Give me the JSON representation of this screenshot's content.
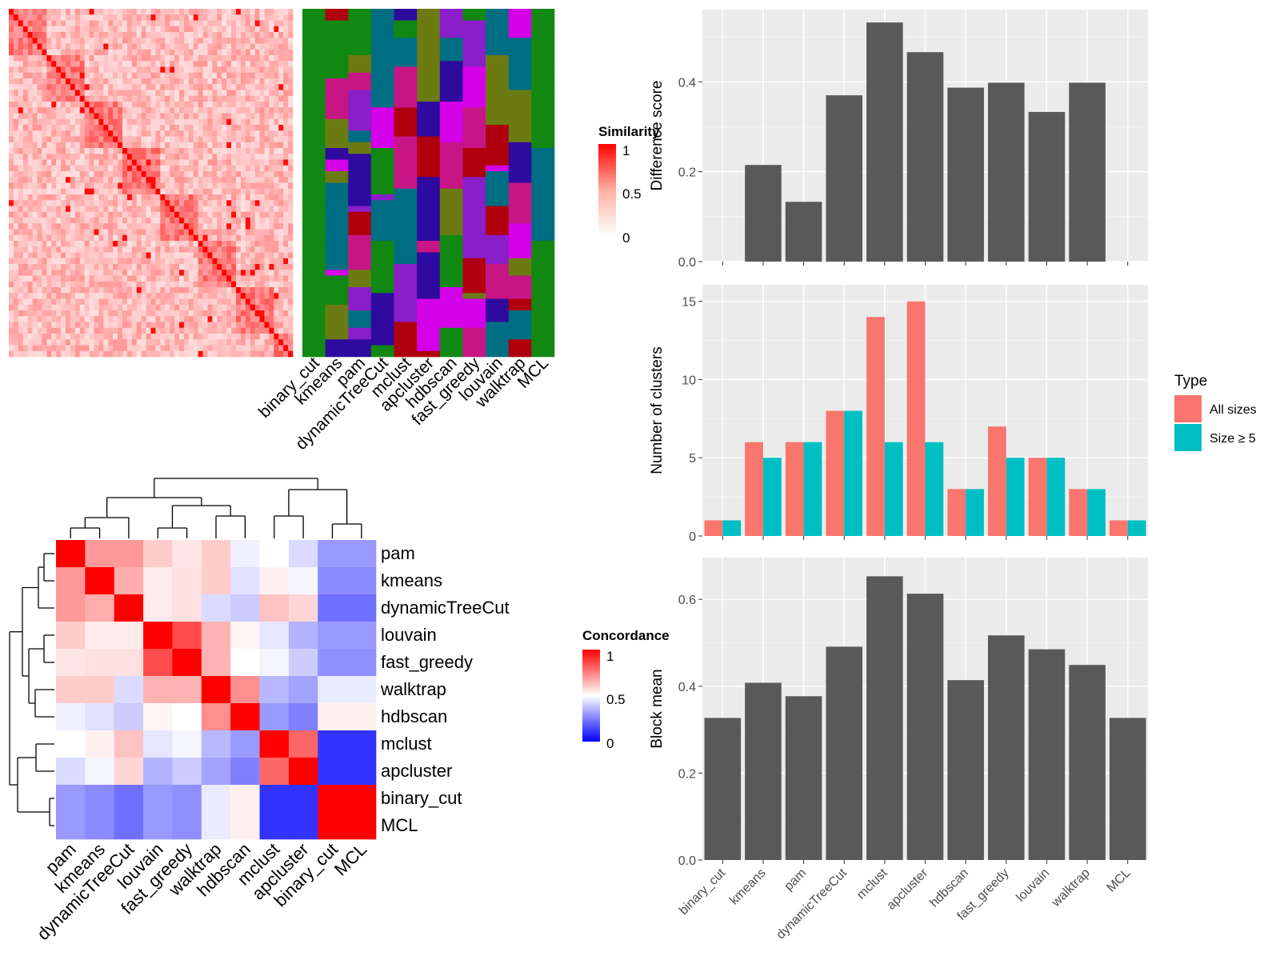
{
  "methods_order": [
    "binary_cut",
    "kmeans",
    "pam",
    "dynamicTreeCut",
    "mclust",
    "apcluster",
    "hdbscan",
    "fast_greedy",
    "louvain",
    "walktrap",
    "MCL"
  ],
  "similarity_heatmap": {
    "legend_title": "Similarity",
    "legend_ticks": [
      "1",
      "0.5",
      "0"
    ],
    "column_labels": [
      "binary_cut",
      "kmeans",
      "pam",
      "dynamicTreeCut",
      "mclust",
      "apcluster",
      "hdbscan",
      "fast_greedy",
      "louvain",
      "walktrap",
      "MCL"
    ]
  },
  "concordance_heatmap": {
    "legend_title": "Concordance",
    "legend_ticks": [
      "1",
      "0.5",
      "0"
    ],
    "labels": [
      "pam",
      "kmeans",
      "dynamicTreeCut",
      "louvain",
      "fast_greedy",
      "walktrap",
      "hdbscan",
      "mclust",
      "apcluster",
      "binary_cut",
      "MCL"
    ],
    "values": [
      [
        1.0,
        0.7,
        0.7,
        0.6,
        0.55,
        0.6,
        0.47,
        0.5,
        0.43,
        0.3,
        0.3
      ],
      [
        0.7,
        1.0,
        0.66,
        0.54,
        0.56,
        0.6,
        0.44,
        0.53,
        0.48,
        0.27,
        0.27
      ],
      [
        0.7,
        0.66,
        1.0,
        0.54,
        0.56,
        0.43,
        0.4,
        0.62,
        0.58,
        0.22,
        0.22
      ],
      [
        0.6,
        0.54,
        0.54,
        1.0,
        0.85,
        0.65,
        0.52,
        0.45,
        0.35,
        0.3,
        0.3
      ],
      [
        0.55,
        0.56,
        0.56,
        0.85,
        1.0,
        0.65,
        0.5,
        0.48,
        0.4,
        0.28,
        0.28
      ],
      [
        0.6,
        0.6,
        0.43,
        0.65,
        0.65,
        1.0,
        0.72,
        0.36,
        0.32,
        0.46,
        0.46
      ],
      [
        0.47,
        0.44,
        0.4,
        0.52,
        0.5,
        0.72,
        1.0,
        0.3,
        0.25,
        0.53,
        0.53
      ],
      [
        0.5,
        0.53,
        0.62,
        0.45,
        0.48,
        0.36,
        0.3,
        1.0,
        0.8,
        0.1,
        0.1
      ],
      [
        0.43,
        0.48,
        0.58,
        0.35,
        0.4,
        0.32,
        0.25,
        0.8,
        1.0,
        0.1,
        0.1
      ],
      [
        0.3,
        0.27,
        0.22,
        0.3,
        0.28,
        0.46,
        0.53,
        0.1,
        0.1,
        1.0,
        1.0
      ],
      [
        0.3,
        0.27,
        0.22,
        0.3,
        0.28,
        0.46,
        0.53,
        0.1,
        0.1,
        1.0,
        1.0
      ]
    ]
  },
  "chart_data": [
    {
      "type": "bar",
      "ylabel": "Difference score",
      "categories": [
        "binary_cut",
        "kmeans",
        "pam",
        "dynamicTreeCut",
        "mclust",
        "apcluster",
        "hdbscan",
        "fast_greedy",
        "louvain",
        "walktrap",
        "MCL"
      ],
      "values": [
        0,
        0.215,
        0.133,
        0.37,
        0.532,
        0.466,
        0.387,
        0.398,
        0.333,
        0.398,
        0
      ],
      "ylim": [
        0,
        0.55
      ],
      "yticks": [
        "0.0",
        "0.2",
        "0.4"
      ],
      "bar_color": "#595959"
    },
    {
      "type": "bar",
      "ylabel": "Number of clusters",
      "categories": [
        "binary_cut",
        "kmeans",
        "pam",
        "dynamicTreeCut",
        "mclust",
        "apcluster",
        "hdbscan",
        "fast_greedy",
        "louvain",
        "walktrap",
        "MCL"
      ],
      "series": [
        {
          "name": "All sizes",
          "values": [
            1,
            6,
            6,
            8,
            14,
            15,
            3,
            7,
            5,
            3,
            1
          ],
          "color": "#F8766D"
        },
        {
          "name": "Size ≥ 5",
          "values": [
            1,
            5,
            6,
            8,
            6,
            6,
            3,
            5,
            5,
            3,
            1
          ],
          "color": "#00BFC4"
        }
      ],
      "legend_title": "Type",
      "ylim": [
        0,
        15.75
      ],
      "yticks": [
        "0",
        "5",
        "10",
        "15"
      ]
    },
    {
      "type": "bar",
      "ylabel": "Block mean",
      "categories": [
        "binary_cut",
        "kmeans",
        "pam",
        "dynamicTreeCut",
        "mclust",
        "apcluster",
        "hdbscan",
        "fast_greedy",
        "louvain",
        "walktrap",
        "MCL"
      ],
      "values": [
        0.327,
        0.408,
        0.377,
        0.491,
        0.653,
        0.613,
        0.414,
        0.517,
        0.485,
        0.449,
        0.327
      ],
      "ylim": [
        0,
        0.685
      ],
      "yticks": [
        "0.0",
        "0.2",
        "0.4",
        "0.6"
      ],
      "bar_color": "#595959"
    }
  ]
}
